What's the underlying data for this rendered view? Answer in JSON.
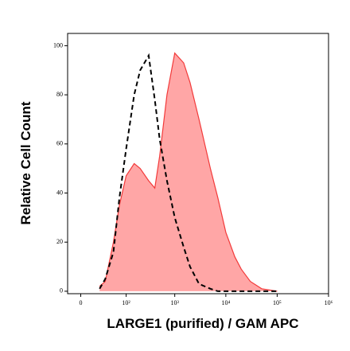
{
  "chart_data": {
    "type": "area",
    "xlabel": "LARGE1 (purified) / GAM APC",
    "ylabel": "Relative Cell Count",
    "x": [
      20,
      30,
      50,
      70,
      100,
      150,
      200,
      300,
      400,
      500,
      700,
      1000,
      1500,
      2000,
      3000,
      5000,
      7000,
      10000,
      15000,
      20000,
      30000,
      50000,
      100000
    ],
    "series": [
      {
        "color": "#f23a3a",
        "fill": "#ffa6a6",
        "style": "solid",
        "values": [
          2,
          4,
          20,
          35,
          47,
          52,
          50,
          45,
          42,
          55,
          80,
          97,
          93,
          85,
          70,
          50,
          38,
          24,
          14,
          9,
          4,
          1,
          0
        ]
      },
      {
        "color": "#000000",
        "style": "dashed",
        "values": [
          1,
          5,
          16,
          38,
          58,
          80,
          90,
          96,
          78,
          62,
          45,
          30,
          18,
          10,
          3,
          1,
          0,
          0,
          0,
          0,
          0,
          0,
          0
        ]
      }
    ],
    "xlim": [
      -12,
      1000000
    ],
    "ylim": [
      -1,
      105
    ],
    "xticks": [
      0,
      {
        "value": 100,
        "label": "10²"
      },
      {
        "value": 1000,
        "label": "10³"
      },
      {
        "value": 10000,
        "label": "10⁴"
      },
      {
        "value": 100000,
        "label": "10⁵"
      },
      {
        "value": 1000000,
        "label": "10⁶"
      }
    ],
    "yticks": [
      0,
      20,
      40,
      60,
      80,
      100
    ]
  }
}
